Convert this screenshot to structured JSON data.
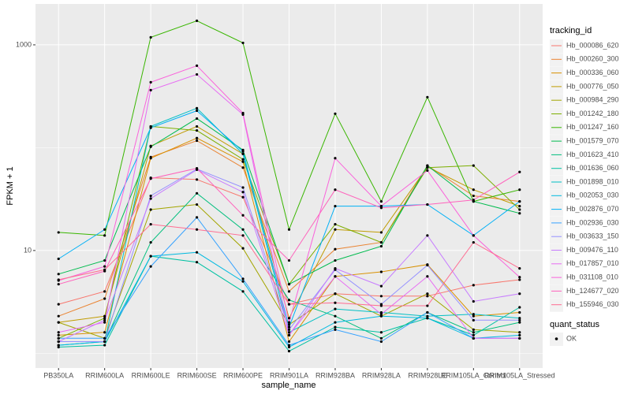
{
  "chart_data": {
    "type": "line",
    "x_label": "sample_name",
    "y_label": "FPKM + 1",
    "categories": [
      "PB350LA",
      "RRIM600LA",
      "RRIM600LE",
      "RRIM600SE",
      "RRIM600PE",
      "RRIM901LA",
      "RRIM928BA",
      "RRIM928LA",
      "RRIM928LE",
      "RRIM105LA_Control",
      "RRIM105LA_Stressed"
    ],
    "ylim": [
      0.72,
      2500
    ],
    "yticks": [
      10,
      1000
    ],
    "minor_yticks": [
      1,
      100
    ],
    "log_y": true,
    "grid": true,
    "legend_title": "tracking_id",
    "legend_position": "right",
    "point_legend": {
      "title": "quant_status",
      "labels": [
        "OK"
      ],
      "color": "#000000"
    },
    "series": [
      {
        "name": "Hb_000086_620",
        "color": "#F8766D",
        "values": [
          3.0,
          4.0,
          51,
          49,
          33,
          3.0,
          3.8,
          3.6,
          3.6,
          4.6,
          5.2
        ]
      },
      {
        "name": "Hb_000260_300",
        "color": "#EA8331",
        "values": [
          2.3,
          3.4,
          81,
          117,
          64,
          4.0,
          10.3,
          12,
          67,
          34,
          30
        ]
      },
      {
        "name": "Hb_000336_060",
        "color": "#D89000",
        "values": [
          1.5,
          1.6,
          79,
          124,
          73,
          1.3,
          5.6,
          6.2,
          7.3,
          2.3,
          2.5
        ]
      },
      {
        "name": "Hb_000776_050",
        "color": "#C09B00",
        "values": [
          2.0,
          2.3,
          104,
          161,
          87,
          2.2,
          16,
          15,
          65,
          39,
          27
        ]
      },
      {
        "name": "Hb_000984_290",
        "color": "#A3A500",
        "values": [
          2.0,
          1.4,
          25,
          28,
          10.5,
          1.9,
          3.8,
          2.3,
          3.8,
          1.7,
          1.6
        ]
      },
      {
        "name": "Hb_001242_180",
        "color": "#7CAE00",
        "values": [
          1.4,
          2.2,
          161,
          147,
          77,
          4.7,
          18,
          12,
          64,
          67,
          25
        ]
      },
      {
        "name": "Hb_001247_160",
        "color": "#39B600",
        "values": [
          15,
          14,
          1183,
          1714,
          1045,
          16,
          214,
          30,
          310,
          30,
          39
        ]
      },
      {
        "name": "Hb_001579_070",
        "color": "#00BB4E",
        "values": [
          5.9,
          8.0,
          102,
          192,
          95,
          4.7,
          8.0,
          11,
          67,
          30,
          23
        ]
      },
      {
        "name": "Hb_001623_410",
        "color": "#00BF7D",
        "values": [
          1.3,
          1.3,
          12,
          36,
          16,
          3.3,
          2.3,
          1.4,
          2.5,
          1.6,
          2.0
        ]
      },
      {
        "name": "Hb_001636_060",
        "color": "#00C1A3",
        "values": [
          1.15,
          1.2,
          8.8,
          7.7,
          4.0,
          1.05,
          1.8,
          1.6,
          2.2,
          1.5,
          2.8
        ]
      },
      {
        "name": "Hb_001898_010",
        "color": "#00BFC4",
        "values": [
          1.2,
          1.3,
          161,
          242,
          87,
          1.6,
          2.7,
          2.5,
          2.3,
          2.4,
          2.2
        ]
      },
      {
        "name": "Hb_002053_030",
        "color": "#00BAE0",
        "values": [
          1.2,
          1.3,
          8.8,
          9.6,
          5.0,
          1.15,
          2.0,
          2.3,
          2.2,
          1.4,
          1.5
        ]
      },
      {
        "name": "Hb_002876_070",
        "color": "#00B0F6",
        "values": [
          8.3,
          16,
          156,
          229,
          92,
          1.8,
          27,
          27,
          28,
          14,
          30
        ]
      },
      {
        "name": "Hb_002936_030",
        "color": "#35A2FF",
        "values": [
          1.4,
          1.4,
          7.0,
          21,
          5.3,
          1.2,
          1.7,
          1.3,
          2.5,
          1.4,
          1.4
        ]
      },
      {
        "name": "Hb_003633_150",
        "color": "#9590FF",
        "values": [
          1.3,
          1.3,
          34,
          62,
          41,
          1.7,
          6.5,
          3.0,
          7.2,
          2.1,
          2.1
        ]
      },
      {
        "name": "Hb_009476_110",
        "color": "#C77CFF",
        "values": [
          1.3,
          2.1,
          32,
          61,
          37,
          1.5,
          6.7,
          4.5,
          14,
          3.2,
          3.8
        ]
      },
      {
        "name": "Hb_017857_010",
        "color": "#E76BF3",
        "values": [
          1.6,
          2.0,
          363,
          516,
          210,
          1.5,
          5.6,
          2.4,
          5.6,
          1.4,
          1.4
        ]
      },
      {
        "name": "Hb_031108_010",
        "color": "#FA62DB",
        "values": [
          5.1,
          7.0,
          433,
          627,
          217,
          2.0,
          79,
          27,
          60,
          14,
          5.5
        ]
      },
      {
        "name": "Hb_124677_020",
        "color": "#FF62BC",
        "values": [
          4.7,
          6.3,
          50,
          63,
          22,
          8.0,
          39,
          26,
          28,
          31,
          58
        ]
      },
      {
        "name": "Hb_155946_030",
        "color": "#FF6C91",
        "values": [
          5.2,
          6.5,
          18,
          16,
          14,
          3.0,
          3.1,
          2.9,
          2.9,
          12,
          6.7
        ]
      }
    ]
  }
}
